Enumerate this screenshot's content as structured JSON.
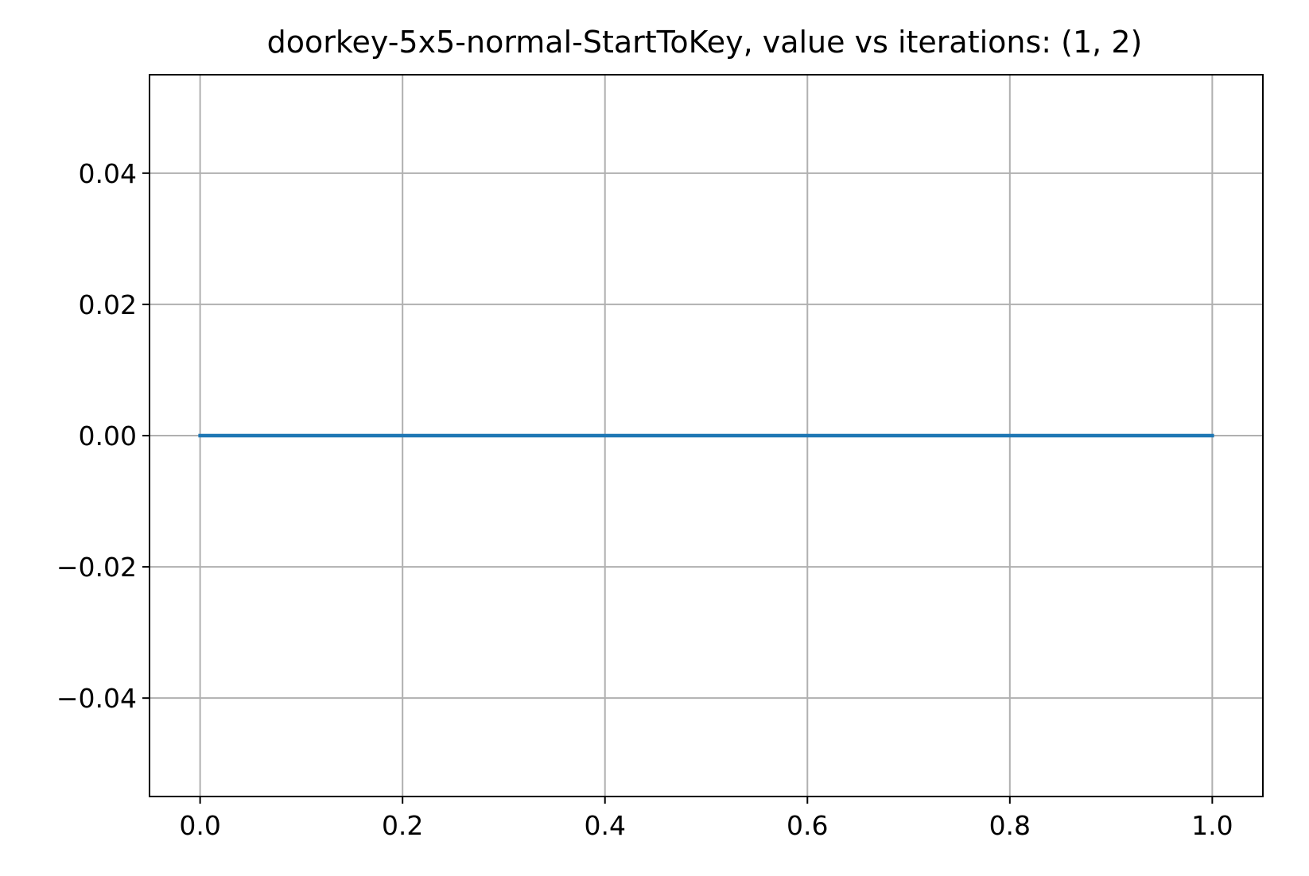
{
  "chart_data": {
    "type": "line",
    "title": "doorkey-5x5-normal-StartToKey, value vs iterations: (1, 2)",
    "xlabel": "",
    "ylabel": "",
    "xlim": [
      -0.05,
      1.05
    ],
    "ylim": [
      -0.055,
      0.055
    ],
    "xticks": [
      0.0,
      0.2,
      0.4,
      0.6,
      0.8,
      1.0
    ],
    "xtick_labels": [
      "0.0",
      "0.2",
      "0.4",
      "0.6",
      "0.8",
      "1.0"
    ],
    "yticks": [
      -0.04,
      -0.02,
      0.0,
      0.02,
      0.04
    ],
    "ytick_labels": [
      "−0.04",
      "−0.02",
      "0.00",
      "0.02",
      "0.04"
    ],
    "grid": true,
    "series": [
      {
        "x": [
          0,
          1
        ],
        "y": [
          0,
          0
        ],
        "color": "#1f77b4"
      }
    ]
  },
  "colors": {
    "grid": "#b0b0b0",
    "axes": "#000000",
    "background": "#ffffff"
  }
}
